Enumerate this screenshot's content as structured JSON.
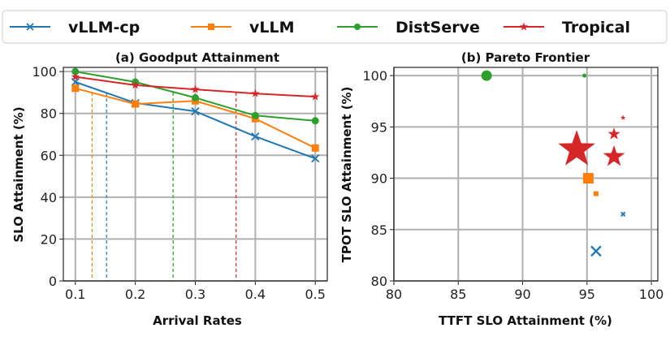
{
  "legend": {
    "items": [
      {
        "label": "vLLM-cp",
        "color": "#1f77b4",
        "marker": "x-icon"
      },
      {
        "label": "vLLM",
        "color": "#ff7f0e",
        "marker": "square-icon"
      },
      {
        "label": "DistServe",
        "color": "#2ca02c",
        "marker": "circle-icon"
      },
      {
        "label": "Tropical",
        "color": "#d62728",
        "marker": "star-icon"
      }
    ]
  },
  "chart_data": [
    {
      "type": "line",
      "title": "(a) Goodput Attainment",
      "xlabel": "Arrival Rates",
      "ylabel": "SLO Attainment (%)",
      "x": [
        0.1,
        0.2,
        0.3,
        0.4,
        0.5
      ],
      "xticks": [
        "0.1",
        "0.2",
        "0.3",
        "0.4",
        "0.5"
      ],
      "xlim": [
        0.08,
        0.52
      ],
      "ylim": [
        0,
        102
      ],
      "yticks": [
        "0",
        "20",
        "40",
        "60",
        "80",
        "100"
      ],
      "grid": true,
      "series": [
        {
          "name": "vLLM-cp",
          "color": "#1f77b4",
          "marker": "x",
          "values": [
            95,
            85,
            81,
            69,
            58.5
          ],
          "threshold_x": 0.152
        },
        {
          "name": "vLLM",
          "color": "#ff7f0e",
          "marker": "square",
          "values": [
            92,
            84.5,
            86,
            77.5,
            63.5
          ],
          "threshold_x": 0.128
        },
        {
          "name": "DistServe",
          "color": "#2ca02c",
          "marker": "circle",
          "values": [
            100,
            95,
            87.5,
            79,
            76.5
          ],
          "threshold_x": 0.263
        },
        {
          "name": "Tropical",
          "color": "#d62728",
          "marker": "star",
          "values": [
            97.5,
            93.5,
            91.5,
            89.5,
            88
          ],
          "threshold_x": 0.368
        }
      ],
      "threshold_y": 90
    },
    {
      "type": "scatter",
      "title": "(b) Pareto Frontier",
      "xlabel": "TTFT SLO Attainment (%)",
      "ylabel": "TPOT SLO Attainment (%)",
      "xlim": [
        80,
        100.5
      ],
      "ylim": [
        80,
        100.8
      ],
      "xticks": [
        "80",
        "85",
        "90",
        "95",
        "100"
      ],
      "yticks": [
        "80",
        "85",
        "90",
        "95",
        "100"
      ],
      "grid": true,
      "series": [
        {
          "name": "vLLM-cp",
          "color": "#1f77b4",
          "marker": "x",
          "points": [
            {
              "x": 95.7,
              "y": 82.9,
              "size": 12
            },
            {
              "x": 97.8,
              "y": 86.5,
              "size": 5
            }
          ]
        },
        {
          "name": "vLLM",
          "color": "#ff7f0e",
          "marker": "square",
          "points": [
            {
              "x": 95.1,
              "y": 90.0,
              "size": 13
            },
            {
              "x": 95.7,
              "y": 88.5,
              "size": 6
            }
          ]
        },
        {
          "name": "DistServe",
          "color": "#2ca02c",
          "marker": "circle",
          "points": [
            {
              "x": 87.2,
              "y": 100.0,
              "size": 13
            },
            {
              "x": 94.8,
              "y": 100.0,
              "size": 5
            }
          ]
        },
        {
          "name": "Tropical",
          "color": "#d62728",
          "marker": "star",
          "points": [
            {
              "x": 94.2,
              "y": 92.8,
              "size": 48
            },
            {
              "x": 97.1,
              "y": 92.1,
              "size": 28
            },
            {
              "x": 97.1,
              "y": 94.3,
              "size": 16
            },
            {
              "x": 97.8,
              "y": 95.9,
              "size": 7
            }
          ]
        }
      ]
    }
  ]
}
